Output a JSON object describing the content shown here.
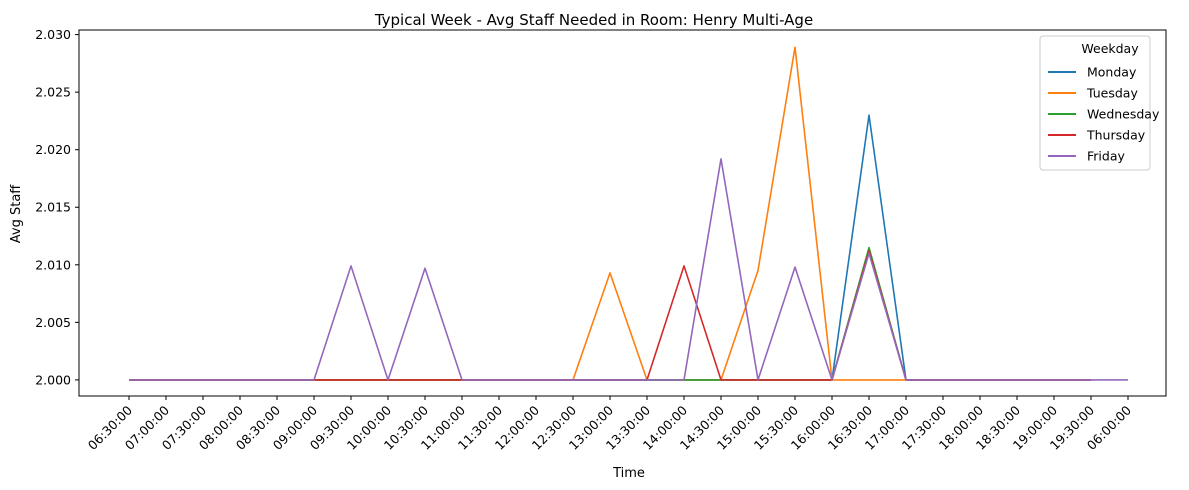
{
  "chart_data": {
    "type": "line",
    "title": "Typical Week - Avg Staff Needed in Room: Henry Multi-Age",
    "xlabel": "Time",
    "ylabel": "Avg Staff",
    "x": [
      "06:30:00",
      "07:00:00",
      "07:30:00",
      "08:00:00",
      "08:30:00",
      "09:00:00",
      "09:30:00",
      "10:00:00",
      "10:30:00",
      "11:00:00",
      "11:30:00",
      "12:00:00",
      "12:30:00",
      "13:00:00",
      "13:30:00",
      "14:00:00",
      "14:30:00",
      "15:00:00",
      "15:30:00",
      "16:00:00",
      "16:30:00",
      "17:00:00",
      "17:30:00",
      "18:00:00",
      "18:30:00",
      "19:00:00",
      "19:30:00",
      "06:00:00"
    ],
    "ylim": [
      1.9986,
      2.0304
    ],
    "yticks": [
      2.0,
      2.005,
      2.01,
      2.015,
      2.02,
      2.025,
      2.03
    ],
    "ytick_labels": [
      "2.000",
      "2.005",
      "2.010",
      "2.015",
      "2.020",
      "2.025",
      "2.030"
    ],
    "legend_title": "Weekday",
    "legend_position": "top-right",
    "grid": false,
    "series": [
      {
        "name": "Monday",
        "color": "#1f77b4",
        "values": [
          2.0,
          2.0,
          2.0,
          2.0,
          2.0,
          2.0,
          2.0,
          2.0,
          2.0,
          2.0,
          2.0,
          2.0,
          2.0,
          2.0,
          2.0,
          2.0,
          2.0,
          2.0,
          2.0,
          2.0,
          2.023,
          2.0,
          2.0,
          2.0,
          2.0,
          2.0,
          2.0,
          null
        ]
      },
      {
        "name": "Tuesday",
        "color": "#ff7f0e",
        "values": [
          2.0,
          2.0,
          2.0,
          2.0,
          2.0,
          2.0,
          2.0,
          2.0,
          2.0,
          2.0,
          2.0,
          2.0,
          2.0,
          2.0093,
          2.0,
          2.0,
          2.0,
          2.0095,
          2.0289,
          2.0,
          2.0,
          2.0,
          2.0,
          2.0,
          2.0,
          2.0,
          2.0,
          null
        ]
      },
      {
        "name": "Wednesday",
        "color": "#2ca02c",
        "values": [
          2.0,
          2.0,
          2.0,
          2.0,
          2.0,
          2.0,
          2.0,
          2.0,
          2.0,
          2.0,
          2.0,
          2.0,
          2.0,
          2.0,
          2.0,
          2.0,
          2.0,
          2.0,
          2.0,
          2.0,
          2.0115,
          2.0,
          2.0,
          2.0,
          2.0,
          2.0,
          2.0,
          null
        ]
      },
      {
        "name": "Thursday",
        "color": "#d62728",
        "values": [
          2.0,
          2.0,
          2.0,
          2.0,
          2.0,
          2.0,
          2.0,
          2.0,
          2.0,
          2.0,
          2.0,
          2.0,
          2.0,
          2.0,
          2.0,
          2.0099,
          2.0,
          2.0,
          2.0,
          2.0,
          2.0112,
          2.0,
          2.0,
          2.0,
          2.0,
          2.0,
          2.0,
          null
        ]
      },
      {
        "name": "Friday",
        "color": "#9467bd",
        "values": [
          2.0,
          2.0,
          2.0,
          2.0,
          2.0,
          2.0,
          2.0099,
          2.0,
          2.0097,
          2.0,
          2.0,
          2.0,
          2.0,
          2.0,
          2.0,
          2.0,
          2.0192,
          2.0,
          2.0098,
          2.0,
          2.011,
          2.0,
          2.0,
          2.0,
          2.0,
          2.0,
          2.0,
          2.0
        ]
      }
    ]
  }
}
